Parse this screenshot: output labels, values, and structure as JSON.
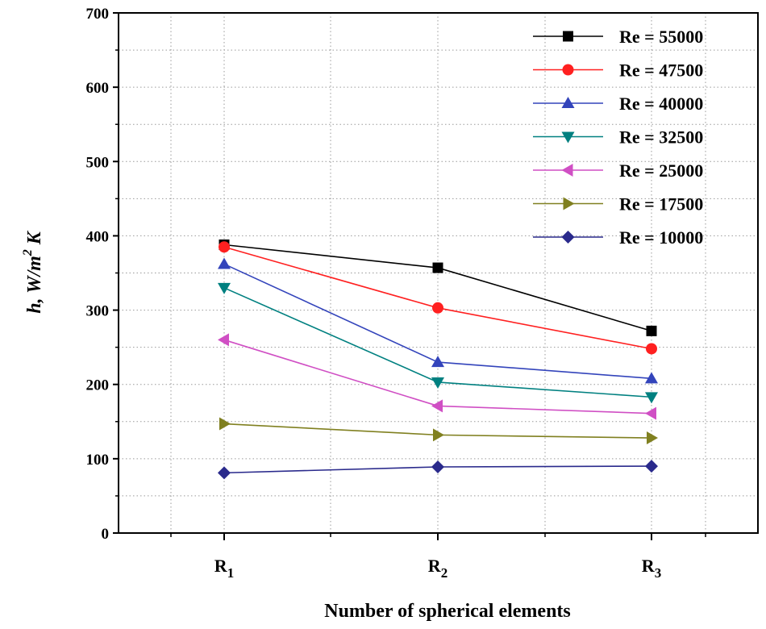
{
  "chart_data": {
    "type": "line",
    "title": "",
    "xlabel": "Number of spherical elements",
    "ylabel": {
      "main": "h, W/m",
      "sup": "2",
      "tail": " K"
    },
    "categories": [
      {
        "base": "R",
        "sub": "1"
      },
      {
        "base": "R",
        "sub": "2"
      },
      {
        "base": "R",
        "sub": "3"
      }
    ],
    "ylim": [
      0,
      700
    ],
    "yticks": [
      0,
      100,
      200,
      300,
      400,
      500,
      600,
      700
    ],
    "grid": "dotted",
    "legend_position": "top-right",
    "series": [
      {
        "name": "Re = 55000",
        "color": "#000000",
        "marker": "square",
        "values": [
          388,
          357,
          272
        ]
      },
      {
        "name": "Re = 47500",
        "color": "#ff2020",
        "marker": "circle",
        "values": [
          385,
          303,
          248
        ]
      },
      {
        "name": "Re = 40000",
        "color": "#3344bb",
        "marker": "triangle-up",
        "values": [
          362,
          230,
          208
        ]
      },
      {
        "name": "Re =  32500",
        "color": "#008080",
        "marker": "triangle-down",
        "values": [
          330,
          203,
          183
        ]
      },
      {
        "name": "Re =  25000",
        "color": "#d04fc4",
        "marker": "triangle-left",
        "values": [
          260,
          171,
          161
        ]
      },
      {
        "name": "Re =  17500",
        "color": "#808020",
        "marker": "triangle-right",
        "values": [
          147,
          132,
          128
        ]
      },
      {
        "name": "Re =  10000",
        "color": "#2a2a8c",
        "marker": "diamond",
        "values": [
          81,
          89,
          90
        ]
      }
    ]
  }
}
